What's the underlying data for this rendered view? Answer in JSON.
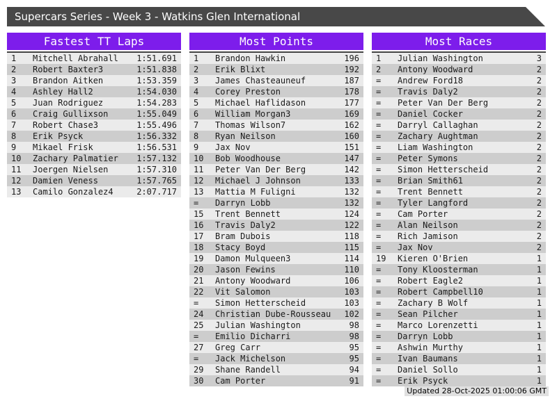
{
  "header": {
    "title": "Supercars Series - Week 3 - Watkins Glen International"
  },
  "footer": {
    "updated": "Updated 28-Oct-2025 01:00:06 GMT"
  },
  "colors": {
    "accent_purple": "#7D1DEB",
    "titlebar_gray": "#484848",
    "rule_dark": "#444444",
    "row_odd": "#ebebeb",
    "row_even": "#cdcdcd",
    "updated_bg": "#e0e0e0"
  },
  "tables": [
    {
      "title": "Fastest TT Laps",
      "rows": [
        {
          "pos": "1",
          "name": "Mitchell Abrahall",
          "value": "1:51.691"
        },
        {
          "pos": "2",
          "name": "Robert Baxter3",
          "value": "1:51.838"
        },
        {
          "pos": "3",
          "name": "Brandon Aitken",
          "value": "1:53.359"
        },
        {
          "pos": "4",
          "name": "Ashley Hall2",
          "value": "1:54.030"
        },
        {
          "pos": "5",
          "name": "Juan Rodriguez",
          "value": "1:54.283"
        },
        {
          "pos": "6",
          "name": "Craig Gullixson",
          "value": "1:55.049"
        },
        {
          "pos": "7",
          "name": "Robert Chase3",
          "value": "1:55.496"
        },
        {
          "pos": "8",
          "name": "Erik Psyck",
          "value": "1:56.332"
        },
        {
          "pos": "9",
          "name": "Mikael Frisk",
          "value": "1:56.531"
        },
        {
          "pos": "10",
          "name": "Zachary Palmatier",
          "value": "1:57.132"
        },
        {
          "pos": "11",
          "name": "Joergen Nielsen",
          "value": "1:57.310"
        },
        {
          "pos": "12",
          "name": "Damien Veness",
          "value": "1:57.765"
        },
        {
          "pos": "13",
          "name": "Camilo Gonzalez4",
          "value": "2:07.717"
        }
      ]
    },
    {
      "title": "Most Points",
      "rows": [
        {
          "pos": "1",
          "name": "Brandon Hawkin",
          "value": "196"
        },
        {
          "pos": "2",
          "name": "Erik Blixt",
          "value": "192"
        },
        {
          "pos": "3",
          "name": "James Chasteauneuf",
          "value": "187"
        },
        {
          "pos": "4",
          "name": "Corey Preston",
          "value": "178"
        },
        {
          "pos": "5",
          "name": "Michael Haflidason",
          "value": "177"
        },
        {
          "pos": "6",
          "name": "William Morgan3",
          "value": "169"
        },
        {
          "pos": "7",
          "name": "Thomas Wilson7",
          "value": "162"
        },
        {
          "pos": "8",
          "name": "Ryan Neilson",
          "value": "160"
        },
        {
          "pos": "9",
          "name": "Jax Nov",
          "value": "151"
        },
        {
          "pos": "10",
          "name": "Bob Woodhouse",
          "value": "147"
        },
        {
          "pos": "11",
          "name": "Peter Van Der Berg",
          "value": "142"
        },
        {
          "pos": "12",
          "name": "Michael J Johnson",
          "value": "133"
        },
        {
          "pos": "13",
          "name": "Mattia M Fuligni",
          "value": "132"
        },
        {
          "pos": "=",
          "name": "Darryn Lobb",
          "value": "132"
        },
        {
          "pos": "15",
          "name": "Trent Bennett",
          "value": "124"
        },
        {
          "pos": "16",
          "name": "Travis Daly2",
          "value": "122"
        },
        {
          "pos": "17",
          "name": "Bram Dubois",
          "value": "118"
        },
        {
          "pos": "18",
          "name": "Stacy Boyd",
          "value": "115"
        },
        {
          "pos": "19",
          "name": "Damon Mulqueen3",
          "value": "114"
        },
        {
          "pos": "20",
          "name": "Jason Fewins",
          "value": "110"
        },
        {
          "pos": "21",
          "name": "Antony Woodward",
          "value": "106"
        },
        {
          "pos": "22",
          "name": "Vit Salomon",
          "value": "103"
        },
        {
          "pos": "=",
          "name": "Simon Hetterscheid",
          "value": "103"
        },
        {
          "pos": "24",
          "name": "Christian Dube-Rousseau",
          "value": "102"
        },
        {
          "pos": "25",
          "name": "Julian Washington",
          "value": "98"
        },
        {
          "pos": "=",
          "name": "Emilio Dicharri",
          "value": "98"
        },
        {
          "pos": "27",
          "name": "Greg Carr",
          "value": "95"
        },
        {
          "pos": "=",
          "name": "Jack Michelson",
          "value": "95"
        },
        {
          "pos": "29",
          "name": "Shane Randell",
          "value": "94"
        },
        {
          "pos": "30",
          "name": "Cam Porter",
          "value": "91"
        }
      ]
    },
    {
      "title": "Most Races",
      "rows": [
        {
          "pos": "1",
          "name": "Julian Washington",
          "value": "3"
        },
        {
          "pos": "2",
          "name": "Antony Woodward",
          "value": "2"
        },
        {
          "pos": "=",
          "name": "Andrew Ford18",
          "value": "2"
        },
        {
          "pos": "=",
          "name": "Travis Daly2",
          "value": "2"
        },
        {
          "pos": "=",
          "name": "Peter Van Der Berg",
          "value": "2"
        },
        {
          "pos": "=",
          "name": "Daniel Cocker",
          "value": "2"
        },
        {
          "pos": "=",
          "name": "Darryl Callaghan",
          "value": "2"
        },
        {
          "pos": "=",
          "name": "Zachary Aughtman",
          "value": "2"
        },
        {
          "pos": "=",
          "name": "Liam Washington",
          "value": "2"
        },
        {
          "pos": "=",
          "name": "Peter Symons",
          "value": "2"
        },
        {
          "pos": "=",
          "name": "Simon Hetterscheid",
          "value": "2"
        },
        {
          "pos": "=",
          "name": "Brian Smith61",
          "value": "2"
        },
        {
          "pos": "=",
          "name": "Trent Bennett",
          "value": "2"
        },
        {
          "pos": "=",
          "name": "Tyler Langford",
          "value": "2"
        },
        {
          "pos": "=",
          "name": "Cam Porter",
          "value": "2"
        },
        {
          "pos": "=",
          "name": "Alan Neilson",
          "value": "2"
        },
        {
          "pos": "=",
          "name": "Rich Jamison",
          "value": "2"
        },
        {
          "pos": "=",
          "name": "Jax Nov",
          "value": "2"
        },
        {
          "pos": "19",
          "name": "Kieren O'Brien",
          "value": "1"
        },
        {
          "pos": "=",
          "name": "Tony Kloosterman",
          "value": "1"
        },
        {
          "pos": "=",
          "name": "Robert Eagle2",
          "value": "1"
        },
        {
          "pos": "=",
          "name": "Robert Campbell10",
          "value": "1"
        },
        {
          "pos": "=",
          "name": "Zachary B Wolf",
          "value": "1"
        },
        {
          "pos": "=",
          "name": "Sean Pilcher",
          "value": "1"
        },
        {
          "pos": "=",
          "name": "Marco Lorenzetti",
          "value": "1"
        },
        {
          "pos": "=",
          "name": "Darryn Lobb",
          "value": "1"
        },
        {
          "pos": "=",
          "name": "Ashwin Murthy",
          "value": "1"
        },
        {
          "pos": "=",
          "name": "Ivan Baumans",
          "value": "1"
        },
        {
          "pos": "=",
          "name": "Daniel Sollo",
          "value": "1"
        },
        {
          "pos": "=",
          "name": "Erik Psyck",
          "value": "1"
        }
      ]
    }
  ]
}
